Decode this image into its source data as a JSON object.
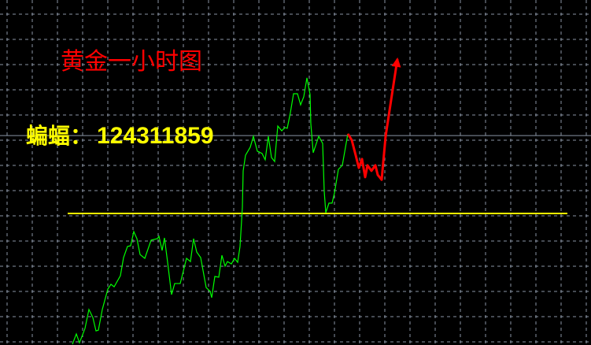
{
  "chart_data": {
    "type": "line",
    "title": "黄金一小时图",
    "xlabel": "",
    "ylabel": "",
    "grid": true,
    "grid_style": "dashed",
    "colors": {
      "background": "#000000",
      "grid": "#8a95a5",
      "history": "#00ff00",
      "forecast": "#ff0000",
      "support": "#ffff00",
      "price_line": "#8a95a5"
    },
    "support_level": 0,
    "price_line_level": 3.09,
    "series": [
      {
        "role": "history",
        "points": [
          [
            0,
            -5.19
          ],
          [
            5,
            -4.78
          ],
          [
            9,
            -5.13
          ],
          [
            16,
            -4.56
          ],
          [
            21,
            -3.81
          ],
          [
            26,
            -4.13
          ],
          [
            30,
            -4.66
          ],
          [
            33,
            -4.63
          ],
          [
            38,
            -3.81
          ],
          [
            45,
            -3.0
          ],
          [
            49,
            -2.81
          ],
          [
            53,
            -2.91
          ],
          [
            61,
            -2.47
          ],
          [
            65,
            -1.75
          ],
          [
            70,
            -1.31
          ],
          [
            74,
            -1.28
          ],
          [
            78,
            -0.72
          ],
          [
            82,
            -1.0
          ],
          [
            86,
            -1.63
          ],
          [
            92,
            -1.78
          ],
          [
            100,
            -1.06
          ],
          [
            108,
            -1.0
          ],
          [
            110,
            -0.91
          ],
          [
            114,
            -1.47
          ],
          [
            117,
            -0.97
          ],
          [
            121,
            -1.94
          ],
          [
            126,
            -3.22
          ],
          [
            130,
            -2.78
          ],
          [
            137,
            -2.78
          ],
          [
            145,
            -1.78
          ],
          [
            150,
            -1.91
          ],
          [
            154,
            -1.0
          ],
          [
            158,
            -1.53
          ],
          [
            163,
            -1.75
          ],
          [
            170,
            -2.94
          ],
          [
            175,
            -3.09
          ],
          [
            177,
            -3.34
          ],
          [
            181,
            -2.5
          ],
          [
            186,
            -2.53
          ],
          [
            190,
            -1.66
          ],
          [
            194,
            -2.09
          ],
          [
            197,
            -1.91
          ],
          [
            202,
            -2.0
          ],
          [
            206,
            -1.78
          ],
          [
            210,
            -1.94
          ],
          [
            213,
            -1.31
          ],
          [
            215,
            -0.28
          ],
          [
            216,
            0.25
          ],
          [
            217,
            1.69
          ],
          [
            220,
            2.31
          ],
          [
            226,
            2.63
          ],
          [
            230,
            3.06
          ],
          [
            235,
            2.47
          ],
          [
            241,
            2.38
          ],
          [
            245,
            2.13
          ],
          [
            249,
            3.06
          ],
          [
            253,
            2.22
          ],
          [
            257,
            2.06
          ],
          [
            261,
            3.47
          ],
          [
            266,
            3.28
          ],
          [
            270,
            3.41
          ],
          [
            273,
            3.38
          ],
          [
            277,
            4.0
          ],
          [
            281,
            4.75
          ],
          [
            286,
            4.75
          ],
          [
            290,
            4.31
          ],
          [
            294,
            4.63
          ],
          [
            298,
            5.38
          ],
          [
            302,
            4.72
          ],
          [
            303,
            3.56
          ],
          [
            306,
            2.41
          ],
          [
            313,
            3.06
          ],
          [
            318,
            2.78
          ],
          [
            320,
            0.88
          ],
          [
            322,
            0.03
          ],
          [
            326,
            0.41
          ],
          [
            330,
            0.41
          ],
          [
            333,
            0.81
          ],
          [
            338,
            1.75
          ],
          [
            343,
            1.91
          ],
          [
            350,
            3.16
          ]
        ]
      },
      {
        "role": "forecast-arrow",
        "points": [
          [
            350,
            3.16
          ],
          [
            355,
            2.91
          ],
          [
            360,
            2.31
          ],
          [
            364,
            1.81
          ],
          [
            368,
            2.16
          ],
          [
            372,
            1.44
          ],
          [
            375,
            1.91
          ],
          [
            380,
            1.69
          ],
          [
            385,
            1.91
          ],
          [
            388,
            1.53
          ],
          [
            393,
            1.34
          ],
          [
            398,
            3.06
          ],
          [
            405,
            4.5
          ],
          [
            413,
            6.13
          ]
        ]
      }
    ]
  },
  "overlay": {
    "contact_label": "蝙蝠：",
    "contact_number": "124311859"
  }
}
